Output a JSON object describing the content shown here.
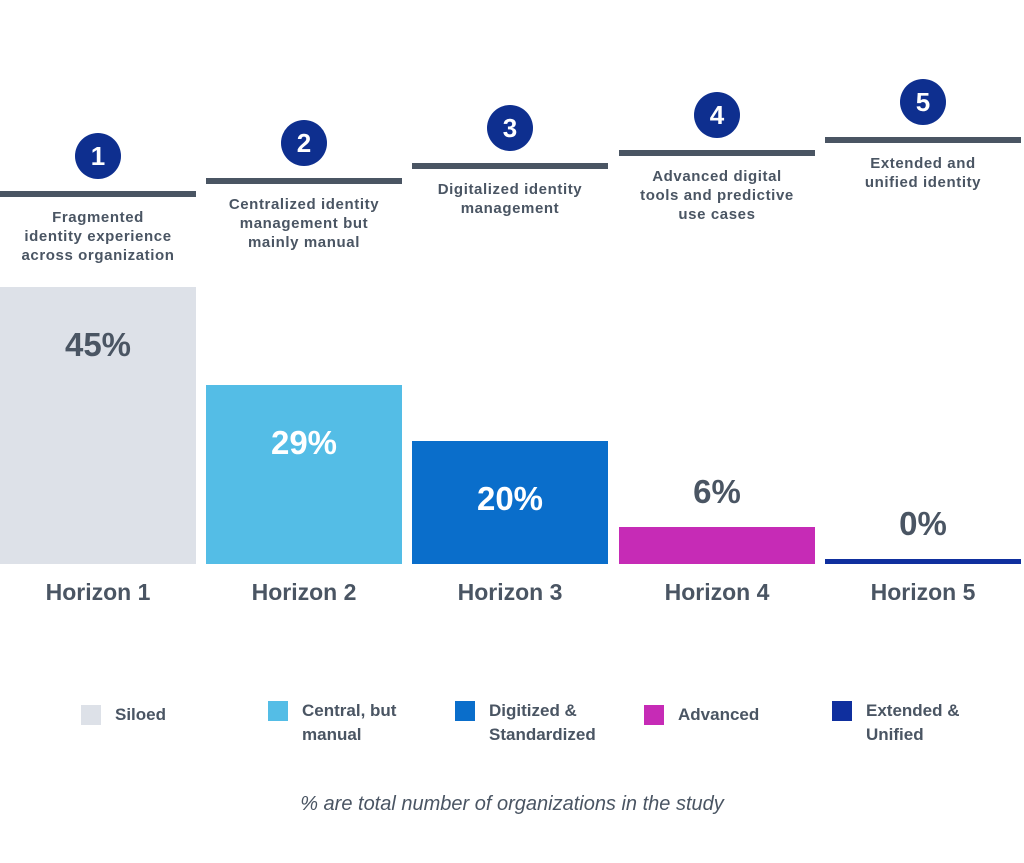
{
  "chart_data": {
    "type": "bar",
    "categories": [
      "Horizon 1",
      "Horizon 2",
      "Horizon 3",
      "Horizon 4",
      "Horizon 5"
    ],
    "values": [
      45,
      29,
      20,
      6,
      0
    ],
    "value_labels": [
      "45%",
      "29%",
      "20%",
      "6%",
      "0%"
    ],
    "badges": [
      "1",
      "2",
      "3",
      "4",
      "5"
    ],
    "descriptions": [
      [
        "Fragmented",
        "identity experience",
        "across organization"
      ],
      [
        "Centralized identity",
        "management but",
        "mainly manual"
      ],
      [
        "Digitalized identity",
        "management"
      ],
      [
        "Advanced digital",
        "tools and predictive",
        "use cases"
      ],
      [
        "Extended and",
        "unified identity"
      ]
    ],
    "colors": [
      "#dde1e8",
      "#54bde6",
      "#0a6ecb",
      "#c62bb6",
      "#0f2f9e"
    ],
    "value_label_colors": [
      "#4a5563",
      "#ffffff",
      "#ffffff",
      "#4a5563",
      "#4a5563"
    ],
    "legend": [
      "Siloed",
      "Central, but manual",
      "Digitized & Standardized",
      "Advanced",
      "Extended & Unified"
    ],
    "footnote": "% are total number of organizations in the study",
    "ylim": [
      0,
      45
    ]
  }
}
